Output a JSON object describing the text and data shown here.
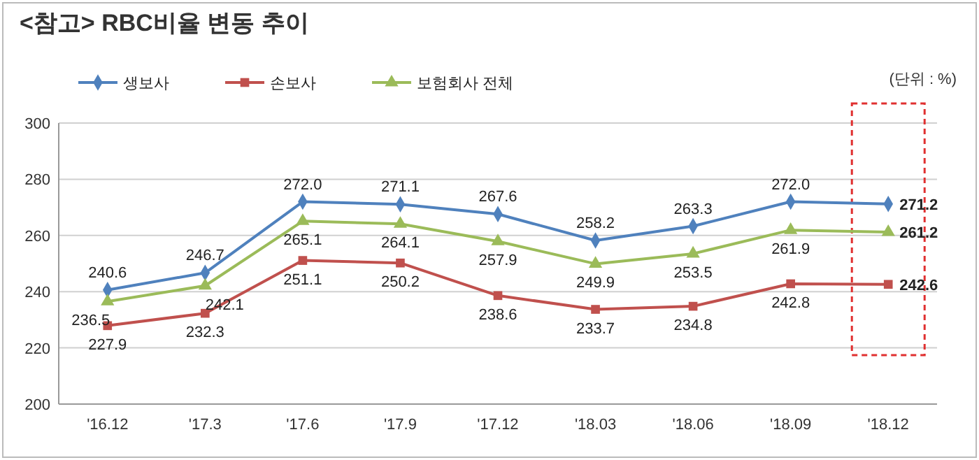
{
  "chart_data": {
    "type": "line",
    "title": "<참고>  RBC비율  변동  추이",
    "annotations": [
      "(단위 : %)"
    ],
    "categories": [
      "'16.12",
      "'17.3",
      "'17.6",
      "'17.9",
      "'17.12",
      "'18.03",
      "'18.06",
      "'18.09",
      "'18.12"
    ],
    "series": [
      {
        "name": "생보사",
        "color": "#4f81bd",
        "marker": "diamond",
        "values": [
          240.6,
          246.7,
          272.0,
          271.1,
          267.6,
          258.2,
          263.3,
          272.0,
          271.2
        ],
        "value_labels": [
          "240.6",
          "246.7",
          "272.0",
          "271.1",
          "267.6",
          "258.2",
          "263.3",
          "272.0",
          "271.2"
        ]
      },
      {
        "name": "손보사",
        "color": "#c0504d",
        "marker": "square",
        "values": [
          227.9,
          232.3,
          251.1,
          250.2,
          238.6,
          233.7,
          234.8,
          242.8,
          242.6
        ],
        "value_labels": [
          "227.9",
          "232.3",
          "251.1",
          "250.2",
          "238.6",
          "233.7",
          "234.8",
          "242.8",
          "242.6"
        ]
      },
      {
        "name": "보험회사 전체",
        "color": "#9bbb59",
        "marker": "triangle",
        "values": [
          236.5,
          242.1,
          265.1,
          264.1,
          257.9,
          249.9,
          253.5,
          261.9,
          261.2
        ],
        "value_labels": [
          "236.5",
          "242.1",
          "265.1",
          "264.1",
          "257.9",
          "249.9",
          "253.5",
          "261.9",
          "261.2"
        ]
      }
    ],
    "ylim": [
      200,
      300
    ],
    "yticks": [
      200,
      220,
      240,
      260,
      280,
      300
    ],
    "grid": "y",
    "legend": "top left",
    "line_style": "solid"
  }
}
